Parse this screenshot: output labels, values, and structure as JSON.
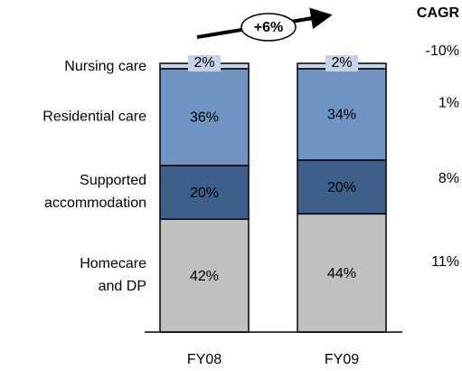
{
  "chart_data": {
    "type": "stacked_bar",
    "categories": [
      "FY08",
      "FY09"
    ],
    "ylim": [
      0,
      100
    ],
    "growth": {
      "value": 6,
      "label": "+6%"
    },
    "cagr_title": "CAGR",
    "series": [
      {
        "name": "Homecare\nand DP",
        "color": "#c0c0c0",
        "values": [
          42,
          44
        ],
        "value_labels": [
          "42%",
          "44%"
        ],
        "cagr": 11,
        "cagr_label": "11%"
      },
      {
        "name": "Supported\naccommodation",
        "color": "#3e5f8a",
        "values": [
          20,
          20
        ],
        "value_labels": [
          "20%",
          "20%"
        ],
        "cagr": 8,
        "cagr_label": "8%"
      },
      {
        "name": "Residential care",
        "color": "#7094c4",
        "values": [
          36,
          34
        ],
        "value_labels": [
          "36%",
          "34%"
        ],
        "cagr": 1,
        "cagr_label": "1%"
      },
      {
        "name": "Nursing care",
        "color": "#c5d3e8",
        "values": [
          2,
          2
        ],
        "value_labels": [
          "2%",
          "2%"
        ],
        "cagr": -10,
        "cagr_label": "-10%"
      }
    ]
  }
}
